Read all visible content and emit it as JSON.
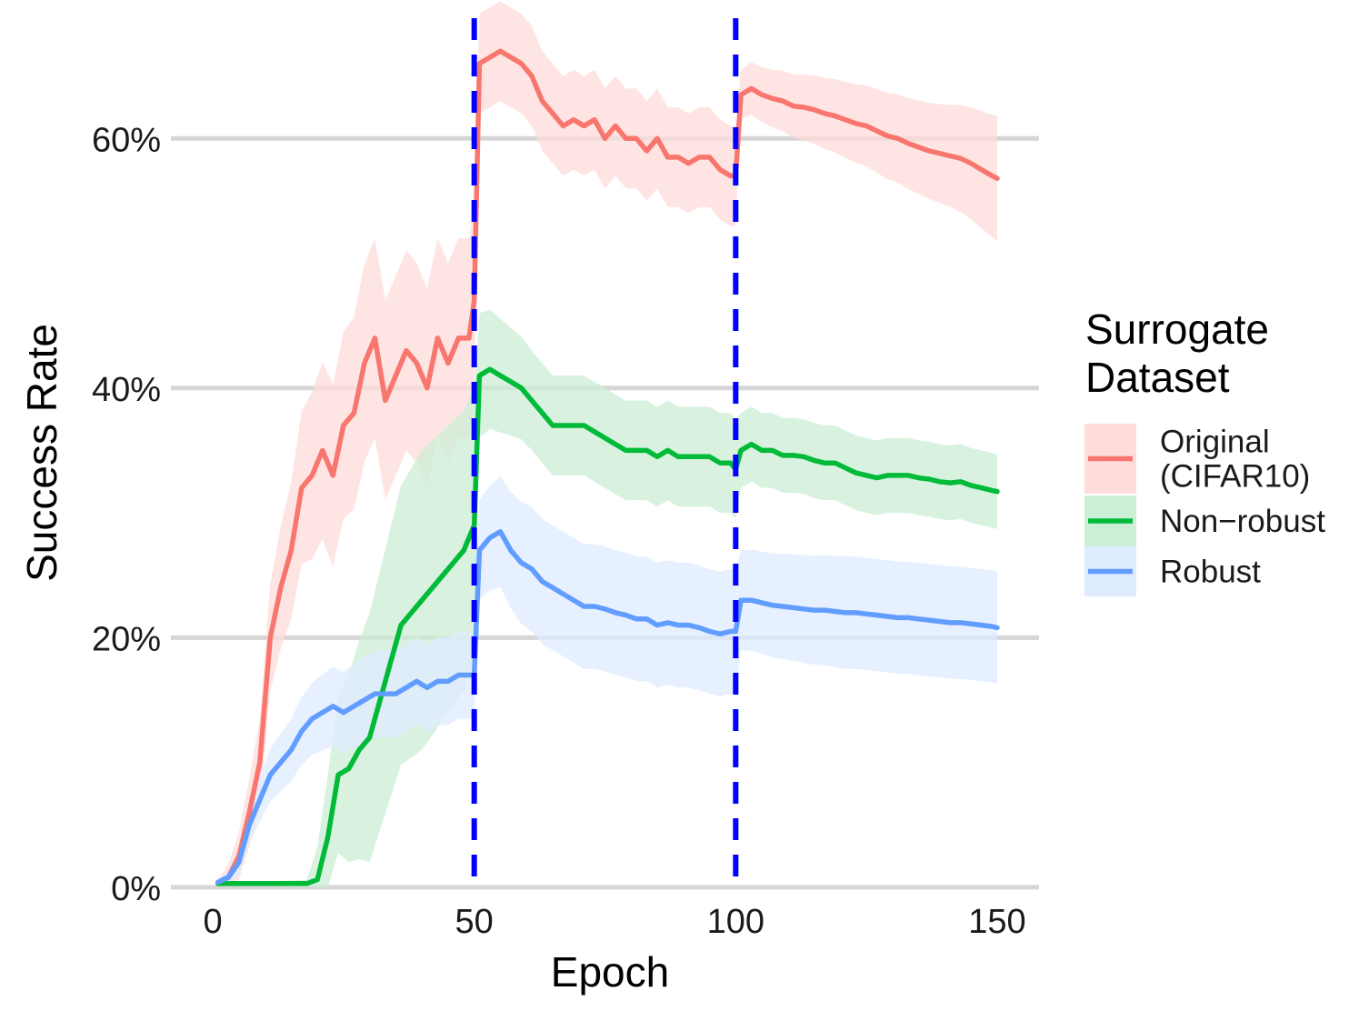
{
  "chart_data": {
    "type": "line",
    "title": "",
    "xlabel": "Epoch",
    "ylabel": "Success Rate",
    "xlim": [
      -8,
      158
    ],
    "ylim": [
      -0.3,
      70
    ],
    "x_ticks": [
      0,
      50,
      100,
      150
    ],
    "x_tick_labels": [
      "0",
      "50",
      "100",
      "150"
    ],
    "y_ticks": [
      0,
      20,
      40,
      60
    ],
    "y_tick_labels": [
      "0%",
      "20%",
      "40%",
      "60%"
    ],
    "grid": "horizontal major",
    "vlines": [
      {
        "x": 50,
        "color": "#0000FF",
        "style": "dashed"
      },
      {
        "x": 100,
        "color": "#0000FF",
        "style": "dashed"
      }
    ],
    "legend": {
      "title_lines": [
        "Surrogate",
        "Dataset"
      ],
      "placement": "right"
    },
    "series": [
      {
        "name_lines": [
          "Original",
          "(CIFAR10)"
        ],
        "color": "#F8766D",
        "band_color": "#FDDCDA",
        "points": [
          [
            1,
            0.4
          ],
          [
            3,
            0.8
          ],
          [
            5,
            2.5
          ],
          [
            7,
            6
          ],
          [
            9,
            10
          ],
          [
            11,
            20
          ],
          [
            13,
            24
          ],
          [
            15,
            27
          ],
          [
            17,
            32
          ],
          [
            19,
            33
          ],
          [
            21,
            35
          ],
          [
            23,
            33
          ],
          [
            25,
            37
          ],
          [
            27,
            38
          ],
          [
            29,
            42
          ],
          [
            31,
            44
          ],
          [
            33,
            39
          ],
          [
            35,
            41
          ],
          [
            37,
            43
          ],
          [
            39,
            42
          ],
          [
            41,
            40
          ],
          [
            43,
            44
          ],
          [
            45,
            42
          ],
          [
            47,
            44
          ],
          [
            49,
            44
          ],
          [
            50,
            47
          ],
          [
            51,
            66
          ],
          [
            53,
            66.5
          ],
          [
            55,
            67
          ],
          [
            57,
            66.5
          ],
          [
            59,
            66
          ],
          [
            61,
            65
          ],
          [
            63,
            63
          ],
          [
            65,
            62
          ],
          [
            67,
            61
          ],
          [
            69,
            61.5
          ],
          [
            71,
            61
          ],
          [
            73,
            61.5
          ],
          [
            75,
            60
          ],
          [
            77,
            61
          ],
          [
            79,
            60
          ],
          [
            81,
            60
          ],
          [
            83,
            59
          ],
          [
            85,
            60
          ],
          [
            87,
            58.5
          ],
          [
            89,
            58.5
          ],
          [
            91,
            58
          ],
          [
            93,
            58.5
          ],
          [
            95,
            58.5
          ],
          [
            97,
            57.5
          ],
          [
            99,
            57
          ],
          [
            100,
            57
          ],
          [
            101,
            63.5
          ],
          [
            103,
            64
          ],
          [
            105,
            63.5
          ],
          [
            107,
            63.2
          ],
          [
            109,
            63
          ],
          [
            111,
            62.6
          ],
          [
            113,
            62.5
          ],
          [
            115,
            62.3
          ],
          [
            117,
            62
          ],
          [
            119,
            61.8
          ],
          [
            121,
            61.5
          ],
          [
            123,
            61.2
          ],
          [
            125,
            61
          ],
          [
            127,
            60.6
          ],
          [
            129,
            60.2
          ],
          [
            131,
            60
          ],
          [
            133,
            59.6
          ],
          [
            135,
            59.3
          ],
          [
            137,
            59
          ],
          [
            139,
            58.8
          ],
          [
            141,
            58.6
          ],
          [
            143,
            58.4
          ],
          [
            145,
            58
          ],
          [
            147,
            57.5
          ],
          [
            149,
            57
          ],
          [
            150,
            56.8
          ]
        ],
        "band_half_width": [
          [
            1,
            0.2
          ],
          [
            10,
            4
          ],
          [
            20,
            7
          ],
          [
            30,
            8
          ],
          [
            50,
            8
          ],
          [
            51,
            4
          ],
          [
            60,
            4
          ],
          [
            75,
            4
          ],
          [
            90,
            4
          ],
          [
            100,
            4
          ],
          [
            101,
            2
          ],
          [
            120,
            3
          ],
          [
            140,
            4
          ],
          [
            150,
            5
          ]
        ]
      },
      {
        "name": "Non−robust",
        "color": "#00BA38",
        "band_color": "#CCEED5",
        "points": [
          [
            1,
            0.3
          ],
          [
            5,
            0.3
          ],
          [
            10,
            0.3
          ],
          [
            15,
            0.3
          ],
          [
            18,
            0.3
          ],
          [
            20,
            0.6
          ],
          [
            22,
            4
          ],
          [
            24,
            9
          ],
          [
            26,
            9.5
          ],
          [
            28,
            11
          ],
          [
            30,
            12
          ],
          [
            32,
            15
          ],
          [
            34,
            18
          ],
          [
            36,
            21
          ],
          [
            38,
            22
          ],
          [
            40,
            23
          ],
          [
            42,
            24
          ],
          [
            44,
            25
          ],
          [
            46,
            26
          ],
          [
            48,
            27
          ],
          [
            49,
            28
          ],
          [
            50,
            29
          ],
          [
            51,
            41
          ],
          [
            53,
            41.5
          ],
          [
            55,
            41
          ],
          [
            57,
            40.5
          ],
          [
            59,
            40
          ],
          [
            61,
            39
          ],
          [
            63,
            38
          ],
          [
            65,
            37
          ],
          [
            67,
            37
          ],
          [
            69,
            37
          ],
          [
            71,
            37
          ],
          [
            73,
            36.5
          ],
          [
            75,
            36
          ],
          [
            77,
            35.5
          ],
          [
            79,
            35
          ],
          [
            81,
            35
          ],
          [
            83,
            35
          ],
          [
            85,
            34.5
          ],
          [
            87,
            35
          ],
          [
            89,
            34.5
          ],
          [
            91,
            34.5
          ],
          [
            93,
            34.5
          ],
          [
            95,
            34.5
          ],
          [
            97,
            34
          ],
          [
            99,
            34
          ],
          [
            100,
            33.5
          ],
          [
            101,
            35
          ],
          [
            103,
            35.5
          ],
          [
            105,
            35
          ],
          [
            107,
            35
          ],
          [
            109,
            34.6
          ],
          [
            111,
            34.6
          ],
          [
            113,
            34.5
          ],
          [
            115,
            34.2
          ],
          [
            117,
            34
          ],
          [
            119,
            34
          ],
          [
            121,
            33.6
          ],
          [
            123,
            33.2
          ],
          [
            125,
            33
          ],
          [
            127,
            32.8
          ],
          [
            129,
            33
          ],
          [
            131,
            33
          ],
          [
            133,
            33
          ],
          [
            135,
            32.8
          ],
          [
            137,
            32.7
          ],
          [
            139,
            32.5
          ],
          [
            141,
            32.4
          ],
          [
            143,
            32.5
          ],
          [
            145,
            32.2
          ],
          [
            147,
            32
          ],
          [
            149,
            31.8
          ],
          [
            150,
            31.7
          ]
        ],
        "band_half_width": [
          [
            1,
            0
          ],
          [
            18,
            0.3
          ],
          [
            22,
            5
          ],
          [
            30,
            10
          ],
          [
            40,
            12
          ],
          [
            50,
            11
          ],
          [
            51,
            5
          ],
          [
            60,
            4
          ],
          [
            80,
            4
          ],
          [
            100,
            4
          ],
          [
            101,
            3
          ],
          [
            120,
            3
          ],
          [
            140,
            3
          ],
          [
            150,
            3
          ]
        ]
      },
      {
        "name": "Robust",
        "color": "#619CFF",
        "band_color": "#DFEBFF",
        "points": [
          [
            1,
            0.4
          ],
          [
            3,
            0.8
          ],
          [
            5,
            2
          ],
          [
            7,
            5
          ],
          [
            9,
            7
          ],
          [
            11,
            9
          ],
          [
            13,
            10
          ],
          [
            15,
            11
          ],
          [
            17,
            12.5
          ],
          [
            19,
            13.5
          ],
          [
            21,
            14
          ],
          [
            23,
            14.5
          ],
          [
            25,
            14
          ],
          [
            27,
            14.5
          ],
          [
            29,
            15
          ],
          [
            31,
            15.5
          ],
          [
            33,
            15.5
          ],
          [
            35,
            15.5
          ],
          [
            37,
            16
          ],
          [
            39,
            16.5
          ],
          [
            41,
            16
          ],
          [
            43,
            16.5
          ],
          [
            45,
            16.5
          ],
          [
            47,
            17
          ],
          [
            49,
            17
          ],
          [
            50,
            17
          ],
          [
            51,
            27
          ],
          [
            53,
            28
          ],
          [
            55,
            28.5
          ],
          [
            57,
            27
          ],
          [
            59,
            26
          ],
          [
            61,
            25.5
          ],
          [
            63,
            24.5
          ],
          [
            65,
            24
          ],
          [
            67,
            23.5
          ],
          [
            69,
            23
          ],
          [
            71,
            22.5
          ],
          [
            73,
            22.5
          ],
          [
            75,
            22.3
          ],
          [
            77,
            22
          ],
          [
            79,
            21.8
          ],
          [
            81,
            21.5
          ],
          [
            83,
            21.5
          ],
          [
            85,
            21
          ],
          [
            87,
            21.2
          ],
          [
            89,
            21
          ],
          [
            91,
            21
          ],
          [
            93,
            20.8
          ],
          [
            95,
            20.5
          ],
          [
            97,
            20.3
          ],
          [
            99,
            20.5
          ],
          [
            100,
            20.5
          ],
          [
            101,
            23
          ],
          [
            103,
            23
          ],
          [
            105,
            22.8
          ],
          [
            107,
            22.6
          ],
          [
            109,
            22.5
          ],
          [
            111,
            22.4
          ],
          [
            113,
            22.3
          ],
          [
            115,
            22.2
          ],
          [
            117,
            22.2
          ],
          [
            119,
            22.1
          ],
          [
            121,
            22
          ],
          [
            123,
            22
          ],
          [
            125,
            21.9
          ],
          [
            127,
            21.8
          ],
          [
            129,
            21.7
          ],
          [
            131,
            21.6
          ],
          [
            133,
            21.6
          ],
          [
            135,
            21.5
          ],
          [
            137,
            21.4
          ],
          [
            139,
            21.3
          ],
          [
            141,
            21.2
          ],
          [
            143,
            21.2
          ],
          [
            145,
            21.1
          ],
          [
            147,
            21
          ],
          [
            149,
            20.9
          ],
          [
            150,
            20.8
          ]
        ],
        "band_half_width": [
          [
            1,
            0.2
          ],
          [
            10,
            2
          ],
          [
            20,
            3
          ],
          [
            30,
            3.5
          ],
          [
            50,
            3.5
          ],
          [
            51,
            4
          ],
          [
            60,
            5
          ],
          [
            80,
            5
          ],
          [
            100,
            5
          ],
          [
            101,
            4
          ],
          [
            120,
            4.5
          ],
          [
            140,
            4.5
          ],
          [
            150,
            4.5
          ]
        ]
      }
    ]
  }
}
